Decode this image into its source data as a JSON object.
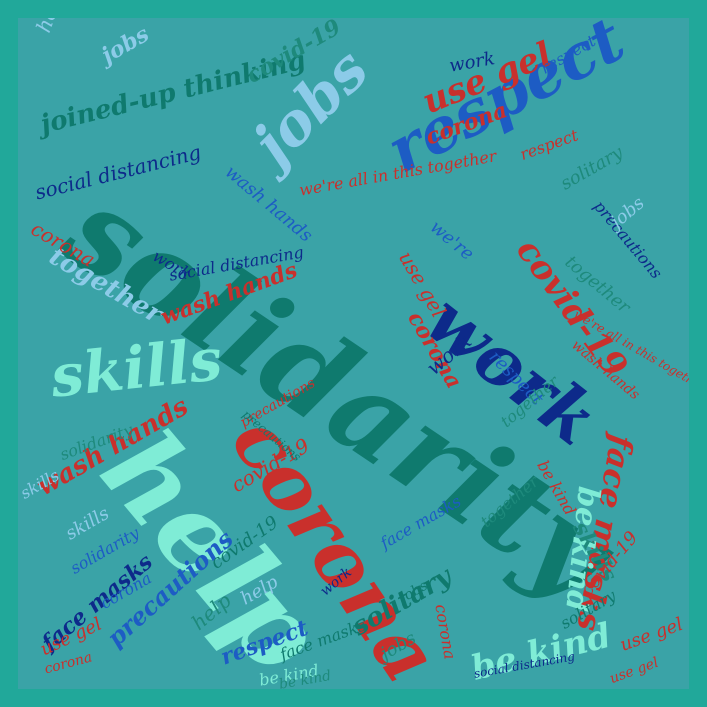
{
  "palette": {
    "frame": "#21a89a",
    "canvas": "#3aa3a7",
    "dark_teal": "#0f7a6e",
    "navy": "#0d2a8a",
    "royal_blue": "#1d5cc4",
    "red": "#c9302c",
    "mint": "#7fecd6",
    "sky": "#8ccbe8",
    "teal_green": "#1e8a7c"
  },
  "words": [
    "solidarity",
    "help",
    "corona",
    "work",
    "respect",
    "jobs",
    "skills",
    "covid-19",
    "face masks",
    "be kind",
    "use gel",
    "joined-up thinking",
    "social distancing",
    "together",
    "wash hands",
    "precautions",
    "solitary",
    "we're all in this together",
    "covid-19",
    "corona",
    "respect",
    "jobs",
    "skills",
    "together",
    "corona",
    "work",
    "help",
    "use gel",
    "be kind",
    "solitary",
    "precautions",
    "face masks",
    "wash hands",
    "social distancing",
    "solidarity",
    "we're",
    "corona",
    "covid-19",
    "respect",
    "work",
    "jobs",
    "skills",
    "be kind",
    "use gel",
    "together",
    "help",
    "precautions",
    "face masks",
    "corona",
    "covid-19",
    "solidarity",
    "wash hands",
    "respect",
    "work",
    "jobs",
    "be kind",
    "use gel",
    "skills",
    "together",
    "solitary",
    "corona",
    "help",
    "covid-19",
    "face masks",
    "social distancing",
    "respect",
    "work",
    "jobs",
    "be kind",
    "corona",
    "use gel",
    "we're all in this together",
    "wash hands",
    "precautions"
  ]
}
